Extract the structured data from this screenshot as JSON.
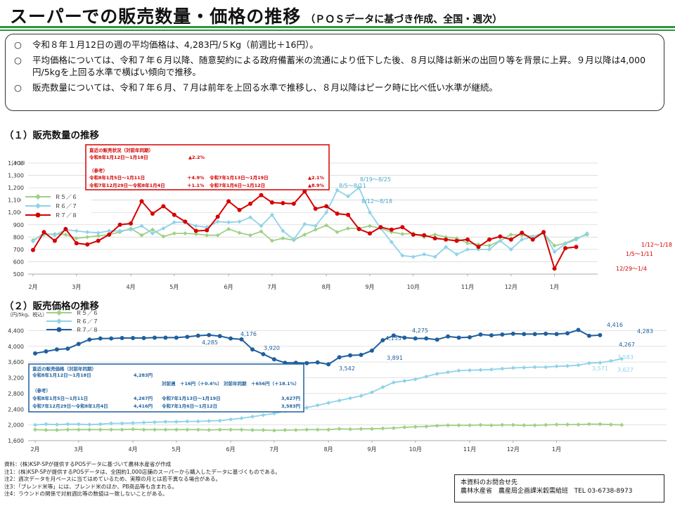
{
  "page": {
    "title": "スーパーでの販売数量・価格の推移",
    "subtitle": "（ＰＯＳデータに基づき作成、全国・週次）"
  },
  "summary": [
    {
      "mark": "○",
      "text": "令和８年１月12日の週の平均価格は、4,283円/５Kg（前週比＋16円）。"
    },
    {
      "mark": "○",
      "text": "平均価格については、令和７年６月以降、随意契約による政府備蓄米の流通により低下した後、８月以降は新米の出回り等を背景に上昇。９月以降は4,000円/5kgを上回る水準で横ばい傾向で推移。"
    },
    {
      "mark": "○",
      "text": "販売数量については、令和７年６月、７月は前年を上回る水準で推移し、８月以降はピーク時に比べ低い水準が継続。"
    }
  ],
  "sections": {
    "volume": "（１）販売数量の推移",
    "price": "（２）販売価格の推移"
  },
  "colors": {
    "green": "#9fd087",
    "cyan": "#8fd3e8",
    "red": "#d50000",
    "navy": "#1f5f9d",
    "rule": "#2c9a3c"
  },
  "infobox_volume": {
    "heading": "直近の販売状況（対前年同期）",
    "row1_label": "令和8年1月12日～1月18日",
    "row1_value": "▲2.2%",
    "ref": "（参考）",
    "row2_label": "令和8年1月5日～1月11日",
    "row2_value": "＋4.9%",
    "row2_cmp_label": "令和7年1月13日～1月19日",
    "row2_cmp_value": "▲2.1%",
    "row3_label": "令和7年12月29日～令和8年1月4日",
    "row3_value": "＋1.1%",
    "row3_cmp_label": "令和7年1月6日～1月12日",
    "row3_cmp_value": "▲8.9%"
  },
  "infobox_price": {
    "heading": "直近の販売価格（対前年同期）",
    "row1_label": "令和8年1月12日～1月18日",
    "row1_value": "4,283円",
    "row2_text_a": "対前週　＋16円（＋0.4%）",
    "row2_text_b": "対前年同期　＋656円（＋18.1%）",
    "ref": "（参考）",
    "row3_label": "令和8年1月5日～1月11日",
    "row3_value": "4,267円",
    "row3_cmp_label": "令和7年1月13日～1月19日",
    "row3_cmp_value": "3,627円",
    "row4_label": "令和7年12月29日～令和8年1月4日",
    "row4_value": "4,416円",
    "row4_cmp_label": "令和7年1月6日～1月12日",
    "row4_cmp_value": "3,583円"
  },
  "chart_data": [
    {
      "type": "line",
      "title": "（１）販売数量の推移",
      "ylabel": "（トン）",
      "ylim": [
        500,
        1400
      ],
      "yticks": [
        500,
        600,
        700,
        800,
        900,
        1000,
        1100,
        1200,
        1300,
        1400
      ],
      "ytick_labels": [
        "500",
        "600",
        "700",
        "800",
        "900",
        "1,000",
        "1,100",
        "1,200",
        "1,300",
        "1,400"
      ],
      "xlabels": [
        "2月",
        "3月",
        "4月",
        "5月",
        "6月",
        "7月",
        "8月",
        "9月",
        "10月",
        "11月",
        "12月",
        "1月"
      ],
      "xlabel_weeks": [
        0,
        4,
        9,
        13,
        18,
        22,
        27,
        31,
        35,
        40,
        44,
        48
      ],
      "legend": [
        "Ｒ５／６",
        "Ｒ６／７",
        "Ｒ７／８"
      ],
      "legend_position": "top-left",
      "series": [
        {
          "name": "Ｒ５／６",
          "color": "#9fd087",
          "values": [
            775,
            820,
            825,
            820,
            790,
            800,
            810,
            820,
            840,
            870,
            815,
            860,
            805,
            830,
            830,
            825,
            815,
            815,
            865,
            835,
            815,
            845,
            770,
            790,
            775,
            820,
            860,
            895,
            840,
            870,
            870,
            890,
            870,
            840,
            825,
            830,
            800,
            820,
            800,
            790,
            750,
            740,
            730,
            770,
            820,
            815,
            805,
            830,
            730,
            750,
            790,
            820
          ]
        },
        {
          "name": "Ｒ６／７",
          "color": "#8fd3e8",
          "values": [
            765,
            835,
            815,
            860,
            850,
            840,
            835,
            850,
            850,
            860,
            890,
            830,
            870,
            920,
            920,
            890,
            880,
            925,
            920,
            925,
            960,
            890,
            980,
            850,
            780,
            905,
            890,
            1000,
            1180,
            1130,
            1200,
            1000,
            870,
            760,
            650,
            640,
            660,
            640,
            720,
            660,
            700,
            700,
            700,
            770,
            700,
            780,
            800,
            840,
            680,
            745,
            780,
            830
          ]
        },
        {
          "name": "Ｒ７／８",
          "color": "#d50000",
          "values": [
            695,
            840,
            770,
            865,
            750,
            740,
            770,
            820,
            900,
            910,
            1090,
            990,
            1050,
            980,
            925,
            850,
            855,
            965,
            1090,
            1020,
            1070,
            1140,
            1080,
            1075,
            1070,
            1170,
            1030,
            1050,
            990,
            980,
            865,
            830,
            880,
            860,
            880,
            820,
            815,
            790,
            780,
            770,
            780,
            720,
            780,
            805,
            780,
            835,
            780,
            840,
            545,
            710,
            720,
            null
          ]
        }
      ],
      "annotations": [
        "8/5～8/11",
        "8/19～8/25",
        "8/12～8/18",
        "1/12～1/18",
        "1/5～1/11",
        "12/29～1/4"
      ]
    },
    {
      "type": "line",
      "title": "（２）販売価格の推移",
      "ylabel": "（円/5kg、税込）",
      "ylim": [
        1600,
        4800
      ],
      "yticks": [
        1600,
        2000,
        2400,
        2800,
        3200,
        3600,
        4000,
        4400
      ],
      "ytick_labels": [
        "1,600",
        "2,000",
        "2,400",
        "2,800",
        "3,200",
        "3,600",
        "4,000",
        "4,400"
      ],
      "xlabels": [
        "2月",
        "3月",
        "4月",
        "5月",
        "6月",
        "7月",
        "8月",
        "9月",
        "10月",
        "11月",
        "12月",
        "1月"
      ],
      "xlabel_weeks": [
        0,
        4,
        9,
        13,
        18,
        22,
        27,
        31,
        35,
        40,
        44,
        48
      ],
      "legend": [
        "Ｒ５／６",
        "Ｒ６／７",
        "Ｒ７／８"
      ],
      "legend_position": "top-center",
      "series": [
        {
          "name": "Ｒ５／６",
          "color": "#9fd087",
          "values": [
            1880,
            1870,
            1870,
            1880,
            1880,
            1880,
            1880,
            1880,
            1880,
            1890,
            1880,
            1880,
            1880,
            1880,
            1880,
            1880,
            1870,
            1880,
            1880,
            1880,
            1870,
            1870,
            1860,
            1870,
            1870,
            1880,
            1880,
            1880,
            1900,
            1890,
            1900,
            1900,
            1910,
            1920,
            1940,
            1950,
            1960,
            1980,
            1990,
            1990,
            1990,
            2000,
            1990,
            2000,
            2000,
            1990,
            1990,
            2000,
            2010,
            2010,
            2010,
            2020,
            2020,
            2010,
            2000
          ]
        },
        {
          "name": "Ｒ６／７",
          "color": "#8fd3e8",
          "values": [
            2000,
            2020,
            2010,
            2020,
            2020,
            2010,
            2020,
            2040,
            2040,
            2050,
            2060,
            2070,
            2080,
            2080,
            2090,
            2090,
            2100,
            2110,
            2140,
            2170,
            2210,
            2250,
            2290,
            2350,
            2400,
            2440,
            2500,
            2560,
            2620,
            2680,
            2740,
            2830,
            2960,
            3080,
            3120,
            3160,
            3230,
            3300,
            3340,
            3380,
            3390,
            3400,
            3410,
            3430,
            3450,
            3460,
            3470,
            3470,
            3490,
            3500,
            3520,
            3571,
            3583,
            3627,
            3680
          ]
        },
        {
          "name": "Ｒ７／８",
          "color": "#1f5f9d",
          "values": [
            3820,
            3870,
            3920,
            3940,
            4060,
            4170,
            4200,
            4200,
            4210,
            4210,
            4210,
            4220,
            4220,
            4220,
            4240,
            4270,
            4285,
            4260,
            4200,
            4176,
            3920,
            3800,
            3670,
            3580,
            3580,
            3570,
            3590,
            3542,
            3720,
            3770,
            3780,
            3891,
            4155,
            4275,
            4220,
            4200,
            4200,
            4170,
            4250,
            4220,
            4230,
            4300,
            4280,
            4300,
            4320,
            4310,
            4310,
            4320,
            4310,
            4330,
            4416,
            4267,
            4283,
            null,
            null
          ]
        }
      ],
      "point_labels": [
        "4,285",
        "4,176",
        "3,920",
        "3,542",
        "3,891",
        "4,155",
        "4,275",
        "4,416",
        "4,267",
        "4,283",
        "3,583",
        "3,571",
        "3,627"
      ]
    }
  ],
  "notes": [
    "資料：(株)KSP-SPが提供するPOSデータに基づいて農林水産省が作成",
    "注1：(株)KSP-SPが提供するPOSデータは、全国約1,000店舗のスーパーから購入したデータに基づくものである。",
    "注2：週次データを月ベースに当てはめているため、実際の月とは若干異なる場合がある。",
    "注3：「ブレンド米等」には、ブレンド米のほか、PB商品等も含まれる。",
    "注4：ラウンドの関係で対前週比等の数値は一致しないことがある。"
  ],
  "contact": {
    "heading": "本資料のお問合せ先",
    "org": "農林水産省　農産局企画課米穀需給班",
    "tel": "TEL 03-6738-8973"
  }
}
